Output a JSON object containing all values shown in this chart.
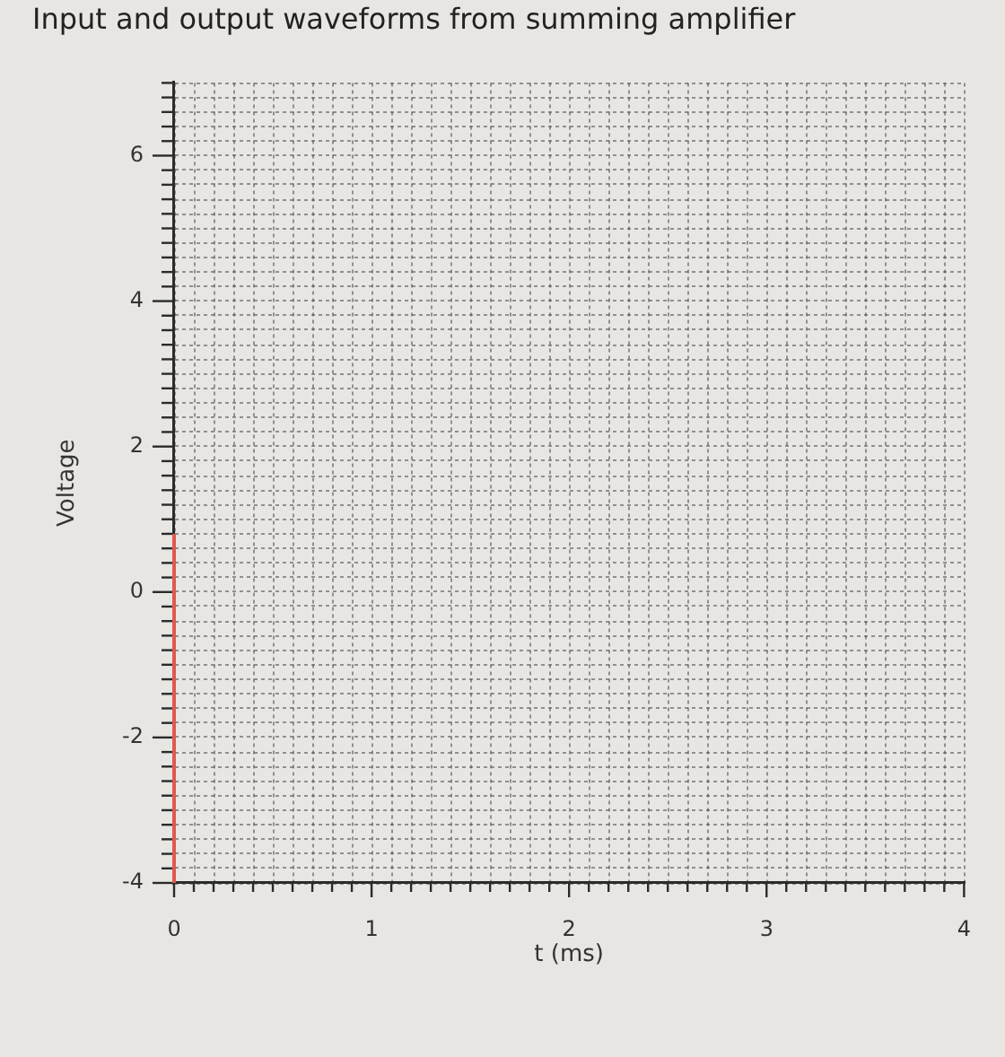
{
  "chart_data": {
    "type": "line",
    "title": "Input and output waveforms from summing amplifier",
    "xlabel": "t (ms)",
    "ylabel": "Voltage",
    "series": [
      {
        "color": "#dd5a4f",
        "x": [
          0,
          0
        ],
        "values": [
          -4,
          0.8
        ]
      }
    ],
    "xlim": [
      0,
      4
    ],
    "xticks": [
      0,
      {
        "value": 0.1,
        "label": null
      },
      {
        "value": 0.2,
        "label": null
      },
      {
        "value": 0.3,
        "label": null
      },
      {
        "value": 0.4,
        "label": null
      },
      {
        "value": 0.5,
        "label": null
      },
      {
        "value": 0.6,
        "label": null
      },
      {
        "value": 0.7,
        "label": null
      },
      {
        "value": 0.8,
        "label": null
      },
      {
        "value": 0.9,
        "label": null
      },
      1,
      {
        "value": 1.1,
        "label": null
      },
      {
        "value": 1.2,
        "label": null
      },
      {
        "value": 1.3,
        "label": null
      },
      {
        "value": 1.4,
        "label": null
      },
      {
        "value": 1.5,
        "label": null
      },
      {
        "value": 1.6,
        "label": null
      },
      {
        "value": 1.7,
        "label": null
      },
      {
        "value": 1.8,
        "label": null
      },
      {
        "value": 1.9,
        "label": null
      },
      2,
      {
        "value": 2.1,
        "label": null
      },
      {
        "value": 2.2,
        "label": null
      },
      {
        "value": 2.3,
        "label": null
      },
      {
        "value": 2.4,
        "label": null
      },
      {
        "value": 2.5,
        "label": null
      },
      {
        "value": 2.6,
        "label": null
      },
      {
        "value": 2.7,
        "label": null
      },
      {
        "value": 2.8,
        "label": null
      },
      {
        "value": 2.9,
        "label": null
      },
      3,
      {
        "value": 3.1,
        "label": null
      },
      {
        "value": 3.2,
        "label": null
      },
      {
        "value": 3.3,
        "label": null
      },
      {
        "value": 3.4,
        "label": null
      },
      {
        "value": 3.5,
        "label": null
      },
      {
        "value": 3.6,
        "label": null
      },
      {
        "value": 3.7,
        "label": null
      },
      {
        "value": 3.8,
        "label": null
      },
      {
        "value": 3.9,
        "label": null
      },
      4
    ],
    "ylim": [
      -4,
      7
    ],
    "yticks": [
      -4,
      {
        "value": -3.8,
        "label": null
      },
      {
        "value": -3.6,
        "label": null
      },
      {
        "value": -3.4,
        "label": null
      },
      {
        "value": -3.2,
        "label": null
      },
      {
        "value": -3,
        "label": null
      },
      {
        "value": -2.8,
        "label": null
      },
      {
        "value": -2.6,
        "label": null
      },
      {
        "value": -2.4,
        "label": null
      },
      {
        "value": -2.2,
        "label": null
      },
      -2,
      {
        "value": -1.8,
        "label": null
      },
      {
        "value": -1.6,
        "label": null
      },
      {
        "value": -1.4,
        "label": null
      },
      {
        "value": -1.2,
        "label": null
      },
      {
        "value": -1,
        "label": null
      },
      {
        "value": -0.8,
        "label": null
      },
      {
        "value": -0.6,
        "label": null
      },
      {
        "value": -0.4,
        "label": null
      },
      {
        "value": -0.2,
        "label": null
      },
      0,
      {
        "value": 0.2,
        "label": null
      },
      {
        "value": 0.4,
        "label": null
      },
      {
        "value": 0.6,
        "label": null
      },
      {
        "value": 0.8,
        "label": null
      },
      {
        "value": 1,
        "label": null
      },
      {
        "value": 1.2,
        "label": null
      },
      {
        "value": 1.4,
        "label": null
      },
      {
        "value": 1.6,
        "label": null
      },
      {
        "value": 1.8,
        "label": null
      },
      2,
      {
        "value": 2.2,
        "label": null
      },
      {
        "value": 2.4,
        "label": null
      },
      {
        "value": 2.6,
        "label": null
      },
      {
        "value": 2.8,
        "label": null
      },
      {
        "value": 3,
        "label": null
      },
      {
        "value": 3.2,
        "label": null
      },
      {
        "value": 3.4,
        "label": null
      },
      {
        "value": 3.6,
        "label": null
      },
      {
        "value": 3.8,
        "label": null
      },
      4,
      {
        "value": 4.2,
        "label": null
      },
      {
        "value": 4.4,
        "label": null
      },
      {
        "value": 4.6,
        "label": null
      },
      {
        "value": 4.8,
        "label": null
      },
      {
        "value": 5,
        "label": null
      },
      {
        "value": 5.2,
        "label": null
      },
      {
        "value": 5.4,
        "label": null
      },
      {
        "value": 5.6,
        "label": null
      },
      {
        "value": 5.8,
        "label": null
      },
      6,
      {
        "value": 6.2,
        "label": null
      },
      {
        "value": 6.4,
        "label": null
      },
      {
        "value": 6.6,
        "label": null
      },
      {
        "value": 6.8,
        "label": null
      },
      {
        "value": 7,
        "label": null
      }
    ],
    "grid": true
  }
}
